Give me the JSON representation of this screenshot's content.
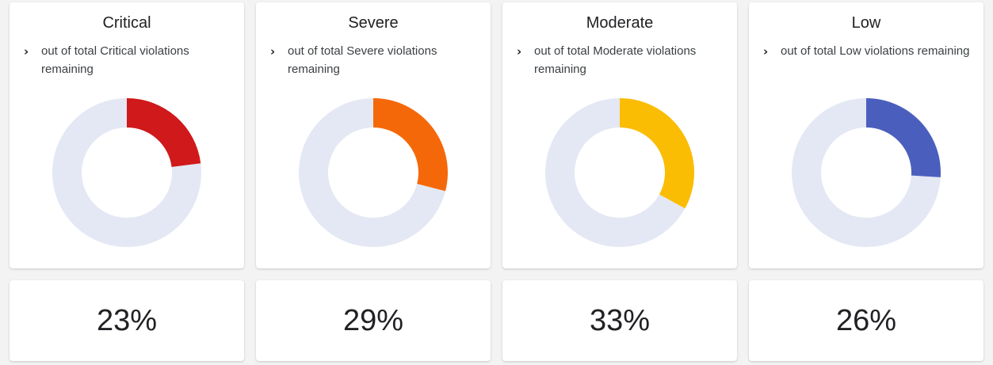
{
  "chart_data": [
    {
      "type": "pie",
      "title": "Critical",
      "subtitle": "out of total Critical violations remaining",
      "value_pct": 23,
      "color": "#d0191b",
      "remainder_color": "#e4e8f4"
    },
    {
      "type": "pie",
      "title": "Severe",
      "subtitle": "out of total Severe violations remaining",
      "value_pct": 29,
      "color": "#f56809",
      "remainder_color": "#e4e8f4"
    },
    {
      "type": "pie",
      "title": "Moderate",
      "subtitle": "out of total Moderate violations remaining",
      "value_pct": 33,
      "color": "#fbbc04",
      "remainder_color": "#e4e8f4"
    },
    {
      "type": "pie",
      "title": "Low",
      "subtitle": "out of total Low violations remaining",
      "value_pct": 26,
      "color": "#4a5fbd",
      "remainder_color": "#e4e8f4"
    }
  ],
  "percent_labels": [
    "23%",
    "29%",
    "33%",
    "26%"
  ],
  "icons": {
    "expand": "chevron-right-icon"
  }
}
